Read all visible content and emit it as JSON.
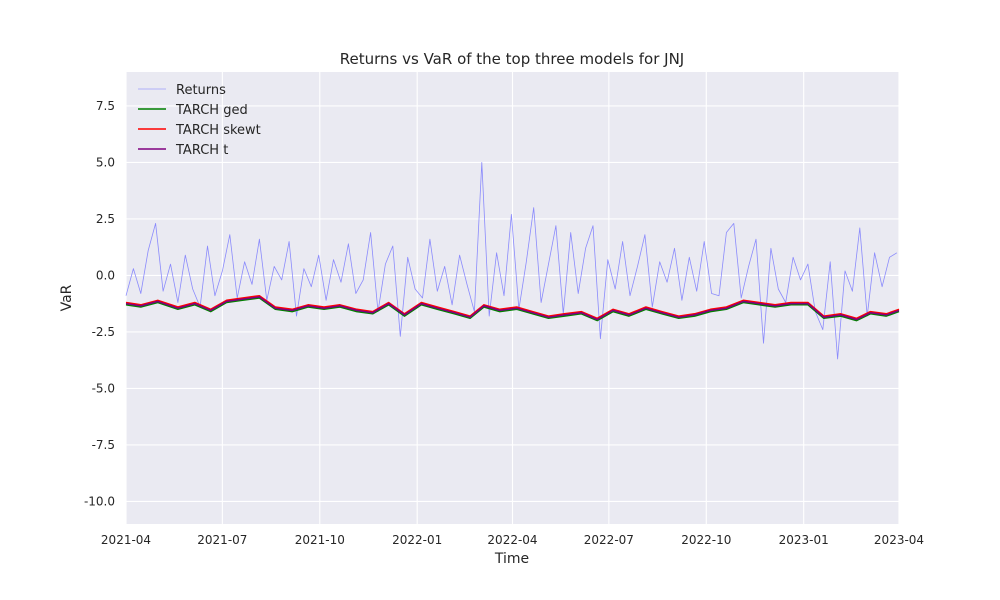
{
  "chart_data": {
    "type": "line",
    "title": "Returns vs VaR of the top three models for JNJ",
    "xlabel": "Time",
    "ylabel": "VaR",
    "xlim": [
      "2021-04-01",
      "2023-04-01"
    ],
    "ylim": [
      -11,
      9
    ],
    "x_ticks": [
      "2021-04",
      "2021-07",
      "2021-10",
      "2022-01",
      "2022-04",
      "2022-07",
      "2022-10",
      "2023-01",
      "2023-04"
    ],
    "y_ticks": [
      7.5,
      5.0,
      2.5,
      0.0,
      -2.5,
      -5.0,
      -7.5,
      -10.0
    ],
    "grid": true,
    "legend_position": "top-left",
    "background_color": "#eaeaf2",
    "series": [
      {
        "name": "Returns",
        "color": "#6b6bff",
        "role": "returns",
        "x": [
          "2021-04-01",
          "2021-04-08",
          "2021-04-15",
          "2021-04-22",
          "2021-04-29",
          "2021-05-06",
          "2021-05-13",
          "2021-05-20",
          "2021-05-27",
          "2021-06-03",
          "2021-06-10",
          "2021-06-17",
          "2021-06-24",
          "2021-07-01",
          "2021-07-08",
          "2021-07-15",
          "2021-07-22",
          "2021-07-29",
          "2021-08-05",
          "2021-08-12",
          "2021-08-19",
          "2021-08-26",
          "2021-09-02",
          "2021-09-09",
          "2021-09-16",
          "2021-09-23",
          "2021-09-30",
          "2021-10-07",
          "2021-10-14",
          "2021-10-21",
          "2021-10-28",
          "2021-11-04",
          "2021-11-11",
          "2021-11-18",
          "2021-11-25",
          "2021-12-02",
          "2021-12-09",
          "2021-12-16",
          "2021-12-23",
          "2021-12-30",
          "2022-01-06",
          "2022-01-13",
          "2022-01-20",
          "2022-01-27",
          "2022-02-03",
          "2022-02-10",
          "2022-02-17",
          "2022-02-24",
          "2022-03-03",
          "2022-03-10",
          "2022-03-17",
          "2022-03-24",
          "2022-03-31",
          "2022-04-07",
          "2022-04-14",
          "2022-04-21",
          "2022-04-28",
          "2022-05-05",
          "2022-05-12",
          "2022-05-19",
          "2022-05-26",
          "2022-06-02",
          "2022-06-09",
          "2022-06-16",
          "2022-06-23",
          "2022-06-30",
          "2022-07-07",
          "2022-07-14",
          "2022-07-21",
          "2022-07-28",
          "2022-08-04",
          "2022-08-11",
          "2022-08-18",
          "2022-08-25",
          "2022-09-01",
          "2022-09-08",
          "2022-09-15",
          "2022-09-22",
          "2022-09-29",
          "2022-10-06",
          "2022-10-13",
          "2022-10-20",
          "2022-10-27",
          "2022-11-03",
          "2022-11-10",
          "2022-11-17",
          "2022-11-24",
          "2022-12-01",
          "2022-12-08",
          "2022-12-15",
          "2022-12-22",
          "2022-12-29",
          "2023-01-05",
          "2023-01-12",
          "2023-01-19",
          "2023-01-26",
          "2023-02-02",
          "2023-02-09",
          "2023-02-16",
          "2023-02-23",
          "2023-03-02",
          "2023-03-09",
          "2023-03-16",
          "2023-03-23",
          "2023-03-30"
        ],
        "y": [
          -0.9,
          0.3,
          -0.8,
          1.1,
          2.3,
          -0.7,
          0.5,
          -1.2,
          0.9,
          -0.6,
          -1.4,
          1.3,
          -0.9,
          0.2,
          1.8,
          -1.0,
          0.6,
          -0.4,
          1.6,
          -1.1,
          0.4,
          -0.2,
          1.5,
          -1.8,
          0.3,
          -0.5,
          0.9,
          -1.1,
          0.7,
          -0.3,
          1.4,
          -0.8,
          -0.2,
          1.9,
          -1.6,
          0.5,
          1.3,
          -2.7,
          0.8,
          -0.6,
          -1.0,
          1.6,
          -0.7,
          0.4,
          -1.3,
          0.9,
          -0.4,
          -1.6,
          5.0,
          -1.8,
          1.0,
          -0.9,
          2.7,
          -1.5,
          0.6,
          3.0,
          -1.2,
          0.5,
          2.2,
          -1.7,
          1.9,
          -0.8,
          1.2,
          2.2,
          -2.8,
          0.7,
          -0.6,
          1.5,
          -0.9,
          0.4,
          1.8,
          -1.4,
          0.6,
          -0.3,
          1.2,
          -1.1,
          0.8,
          -0.7,
          1.5,
          -0.8,
          -0.9,
          1.9,
          2.3,
          -1.0,
          0.4,
          1.6,
          -3.0,
          1.2,
          -0.6,
          -1.2,
          0.8,
          -0.2,
          0.5,
          -1.6,
          -2.4,
          0.6,
          -3.7,
          0.2,
          -0.7,
          2.1,
          -1.8,
          1.0,
          -0.5,
          0.8,
          1.0
        ]
      },
      {
        "name": "TARCH ged",
        "color": "#008000",
        "role": "var",
        "x": [
          "2021-04-01",
          "2021-04-15",
          "2021-05-01",
          "2021-05-20",
          "2021-06-05",
          "2021-06-20",
          "2021-07-05",
          "2021-07-20",
          "2021-08-05",
          "2021-08-20",
          "2021-09-05",
          "2021-09-20",
          "2021-10-05",
          "2021-10-20",
          "2021-11-05",
          "2021-11-20",
          "2021-12-05",
          "2021-12-20",
          "2022-01-05",
          "2022-01-20",
          "2022-02-05",
          "2022-02-20",
          "2022-03-05",
          "2022-03-20",
          "2022-04-05",
          "2022-04-20",
          "2022-05-05",
          "2022-05-20",
          "2022-06-05",
          "2022-06-20",
          "2022-07-05",
          "2022-07-20",
          "2022-08-05",
          "2022-08-20",
          "2022-09-05",
          "2022-09-20",
          "2022-10-05",
          "2022-10-20",
          "2022-11-05",
          "2022-11-20",
          "2022-12-05",
          "2022-12-20",
          "2023-01-05",
          "2023-01-20",
          "2023-02-05",
          "2023-02-20",
          "2023-03-05",
          "2023-03-20",
          "2023-04-01"
        ],
        "y": [
          -1.3,
          -1.4,
          -1.2,
          -1.5,
          -1.3,
          -1.6,
          -1.2,
          -1.1,
          -1.0,
          -1.5,
          -1.6,
          -1.4,
          -1.5,
          -1.4,
          -1.6,
          -1.7,
          -1.3,
          -1.8,
          -1.3,
          -1.5,
          -1.7,
          -1.9,
          -1.4,
          -1.6,
          -1.5,
          -1.7,
          -1.9,
          -1.8,
          -1.7,
          -2.0,
          -1.6,
          -1.8,
          -1.5,
          -1.7,
          -1.9,
          -1.8,
          -1.6,
          -1.5,
          -1.2,
          -1.3,
          -1.4,
          -1.3,
          -1.3,
          -1.9,
          -1.8,
          -2.0,
          -1.7,
          -1.8,
          -1.6
        ]
      },
      {
        "name": "TARCH skewt",
        "color": "#ff0000",
        "role": "var",
        "x": [
          "2021-04-01",
          "2021-04-15",
          "2021-05-01",
          "2021-05-20",
          "2021-06-05",
          "2021-06-20",
          "2021-07-05",
          "2021-07-20",
          "2021-08-05",
          "2021-08-20",
          "2021-09-05",
          "2021-09-20",
          "2021-10-05",
          "2021-10-20",
          "2021-11-05",
          "2021-11-20",
          "2021-12-05",
          "2021-12-20",
          "2022-01-05",
          "2022-01-20",
          "2022-02-05",
          "2022-02-20",
          "2022-03-05",
          "2022-03-20",
          "2022-04-05",
          "2022-04-20",
          "2022-05-05",
          "2022-05-20",
          "2022-06-05",
          "2022-06-20",
          "2022-07-05",
          "2022-07-20",
          "2022-08-05",
          "2022-08-20",
          "2022-09-05",
          "2022-09-20",
          "2022-10-05",
          "2022-10-20",
          "2022-11-05",
          "2022-11-20",
          "2022-12-05",
          "2022-12-20",
          "2023-01-05",
          "2023-01-20",
          "2023-02-05",
          "2023-02-20",
          "2023-03-05",
          "2023-03-20",
          "2023-04-01"
        ],
        "y": [
          -1.2,
          -1.3,
          -1.1,
          -1.4,
          -1.2,
          -1.5,
          -1.1,
          -1.0,
          -0.9,
          -1.4,
          -1.5,
          -1.3,
          -1.4,
          -1.3,
          -1.5,
          -1.6,
          -1.2,
          -1.7,
          -1.2,
          -1.4,
          -1.6,
          -1.8,
          -1.3,
          -1.5,
          -1.4,
          -1.6,
          -1.8,
          -1.7,
          -1.6,
          -1.9,
          -1.5,
          -1.7,
          -1.4,
          -1.6,
          -1.8,
          -1.7,
          -1.5,
          -1.4,
          -1.1,
          -1.2,
          -1.3,
          -1.2,
          -1.2,
          -1.8,
          -1.7,
          -1.9,
          -1.6,
          -1.7,
          -1.5
        ]
      },
      {
        "name": "TARCH t",
        "color": "#800080",
        "role": "var",
        "x": [
          "2021-04-01",
          "2021-04-15",
          "2021-05-01",
          "2021-05-20",
          "2021-06-05",
          "2021-06-20",
          "2021-07-05",
          "2021-07-20",
          "2021-08-05",
          "2021-08-20",
          "2021-09-05",
          "2021-09-20",
          "2021-10-05",
          "2021-10-20",
          "2021-11-05",
          "2021-11-20",
          "2021-12-05",
          "2021-12-20",
          "2022-01-05",
          "2022-01-20",
          "2022-02-05",
          "2022-02-20",
          "2022-03-05",
          "2022-03-20",
          "2022-04-05",
          "2022-04-20",
          "2022-05-05",
          "2022-05-20",
          "2022-06-05",
          "2022-06-20",
          "2022-07-05",
          "2022-07-20",
          "2022-08-05",
          "2022-08-20",
          "2022-09-05",
          "2022-09-20",
          "2022-10-05",
          "2022-10-20",
          "2022-11-05",
          "2022-11-20",
          "2022-12-05",
          "2022-12-20",
          "2023-01-05",
          "2023-01-20",
          "2023-02-05",
          "2023-02-20",
          "2023-03-05",
          "2023-03-20",
          "2023-04-01"
        ],
        "y": [
          -1.25,
          -1.35,
          -1.15,
          -1.45,
          -1.25,
          -1.55,
          -1.15,
          -1.05,
          -0.95,
          -1.45,
          -1.55,
          -1.35,
          -1.45,
          -1.35,
          -1.55,
          -1.65,
          -1.25,
          -1.75,
          -1.25,
          -1.45,
          -1.65,
          -1.85,
          -1.35,
          -1.55,
          -1.45,
          -1.65,
          -1.85,
          -1.75,
          -1.65,
          -1.95,
          -1.55,
          -1.75,
          -1.45,
          -1.65,
          -1.85,
          -1.75,
          -1.55,
          -1.45,
          -1.15,
          -1.25,
          -1.35,
          -1.25,
          -1.25,
          -1.85,
          -1.75,
          -1.95,
          -1.65,
          -1.75,
          -1.55
        ]
      }
    ]
  }
}
